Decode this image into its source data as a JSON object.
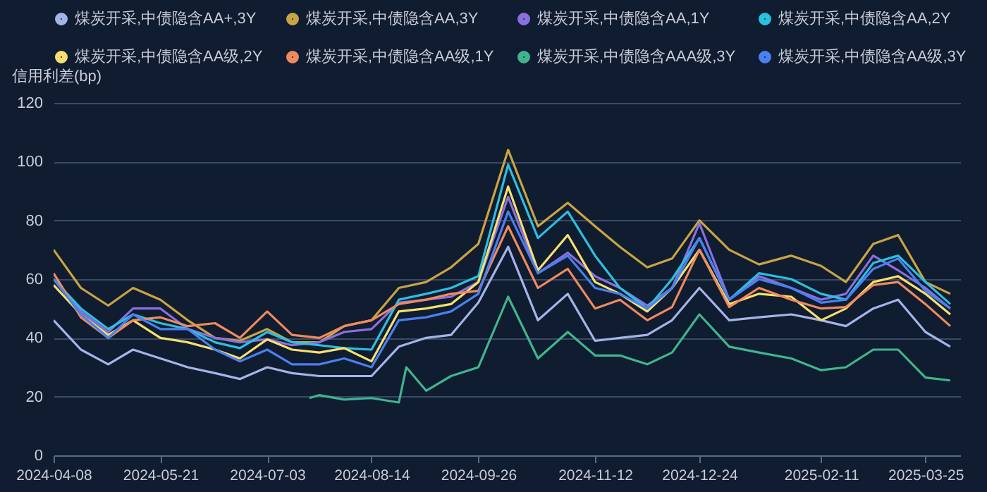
{
  "chart_data": {
    "type": "line",
    "ylabel": "信用利差(bp)",
    "ylim": [
      0,
      120
    ],
    "yticks": [
      0,
      20,
      40,
      60,
      80,
      100,
      120
    ],
    "xlim": [
      "2024-04-08",
      "2025-04-08"
    ],
    "xticks": [
      "2024-04-08",
      "2024-05-21",
      "2024-07-03",
      "2024-08-14",
      "2024-09-26",
      "2024-11-12",
      "2024-12-24",
      "2025-02-11",
      "2025-03-25"
    ],
    "grid": "y",
    "legend": "top",
    "marker": "none",
    "x": [
      "2024-04-08",
      "2024-04-19",
      "2024-04-30",
      "2024-05-10",
      "2024-05-21",
      "2024-06-01",
      "2024-06-12",
      "2024-06-22",
      "2024-07-03",
      "2024-07-13",
      "2024-07-24",
      "2024-08-03",
      "2024-08-14",
      "2024-08-25",
      "2024-09-05",
      "2024-09-15",
      "2024-09-26",
      "2024-10-08",
      "2024-10-20",
      "2024-11-01",
      "2024-11-12",
      "2024-11-22",
      "2024-12-03",
      "2024-12-13",
      "2024-12-24",
      "2025-01-05",
      "2025-01-17",
      "2025-01-30",
      "2025-02-11",
      "2025-02-21",
      "2025-03-04",
      "2025-03-14",
      "2025-03-25",
      "2025-04-04"
    ],
    "series": [
      {
        "name": "煤炭开采,中债隐含AA+,3Y",
        "color": "#a5b4e8",
        "values": [
          46,
          36,
          31,
          36,
          33,
          30,
          28,
          26,
          30,
          28,
          27,
          27,
          27,
          37,
          40,
          41,
          52,
          71,
          46,
          55,
          39,
          40,
          41,
          46,
          57,
          46,
          47,
          48,
          46,
          44,
          50,
          53,
          42,
          37
        ]
      },
      {
        "name": "煤炭开采,中债隐含AA,3Y",
        "color": "#c9a444",
        "values": [
          70,
          57,
          51,
          57,
          53,
          46,
          40,
          39,
          43,
          38.5,
          38.5,
          44,
          46,
          57,
          59,
          64,
          72,
          104,
          78,
          86,
          78,
          71,
          64,
          67,
          80,
          70,
          65,
          68,
          64.5,
          59,
          72,
          75,
          59,
          55
        ]
      },
      {
        "name": "煤炭开采,中债隐含AA,1Y",
        "color": "#8a6fe0",
        "values": [
          60,
          49,
          42,
          50,
          50,
          43,
          40,
          38.5,
          39.5,
          37.5,
          38.5,
          42,
          43,
          52,
          53,
          54,
          59,
          88,
          62,
          69,
          61,
          57,
          51,
          57,
          79,
          53,
          61,
          57,
          53,
          55,
          68,
          63,
          57,
          50
        ]
      },
      {
        "name": "煤炭开采,中债隐含AA,2Y",
        "color": "#2bc0e0",
        "values": [
          60,
          50,
          43,
          48,
          45,
          43,
          38.5,
          36.5,
          42,
          38.5,
          37.5,
          36.5,
          36,
          53,
          55,
          57,
          61,
          99,
          74,
          83,
          68,
          57,
          50,
          60,
          74,
          53,
          62,
          60,
          55,
          53,
          65.5,
          68,
          59,
          51.5
        ]
      },
      {
        "name": "煤炭开采,中债隐含AA级,2Y",
        "color": "#f5e06e",
        "values": [
          58,
          48,
          41,
          46,
          40,
          38.5,
          36,
          33,
          39.5,
          36,
          35,
          36.5,
          32,
          49,
          50,
          51.5,
          59,
          91.5,
          63,
          75,
          59,
          55,
          49,
          57,
          70,
          51.5,
          55,
          54,
          46,
          50,
          59,
          61,
          55,
          48
        ]
      },
      {
        "name": "煤炭开采,中债隐含AA级,1Y",
        "color": "#f08a5d",
        "values": [
          62,
          47,
          40,
          46,
          47,
          44,
          45,
          40,
          49,
          41,
          40,
          44,
          46,
          51.5,
          53,
          55,
          56,
          78,
          57,
          63.5,
          50,
          53,
          46,
          50.5,
          70,
          50.5,
          57,
          53,
          50,
          50.5,
          58,
          59,
          51.5,
          44
        ]
      },
      {
        "name": "煤炭开采,中债隐含AAA级,3Y",
        "color": "#3fb58e",
        "x": [
          "2024-07-20",
          "2024-07-24",
          "2024-08-03",
          "2024-08-14",
          "2024-08-25",
          "2024-08-28",
          "2024-09-05",
          "2024-09-15",
          "2024-09-26",
          "2024-10-08",
          "2024-10-20",
          "2024-11-01",
          "2024-11-12",
          "2024-11-22",
          "2024-12-03",
          "2024-12-13",
          "2024-12-24",
          "2025-01-05",
          "2025-01-17",
          "2025-01-30",
          "2025-02-11",
          "2025-02-21",
          "2025-03-04",
          "2025-03-14",
          "2025-03-25",
          "2025-04-04"
        ],
        "values": [
          19.5,
          20.5,
          19,
          19.5,
          18,
          30,
          22,
          27,
          30,
          54,
          33,
          42,
          34,
          34,
          31,
          35,
          48,
          37,
          35,
          33,
          29,
          30,
          36,
          36,
          26.5,
          25.5
        ]
      },
      {
        "name": "煤炭开采,中债隐含AA级,3Y",
        "color": "#4a80f0",
        "values": [
          60,
          48,
          40,
          48,
          43,
          43,
          36,
          32,
          36,
          31,
          31,
          33,
          30,
          46,
          47,
          49,
          55,
          83,
          62,
          68,
          57,
          55,
          50,
          57,
          74,
          53,
          60,
          57,
          52,
          53,
          63.5,
          67,
          56,
          50
        ]
      }
    ]
  }
}
